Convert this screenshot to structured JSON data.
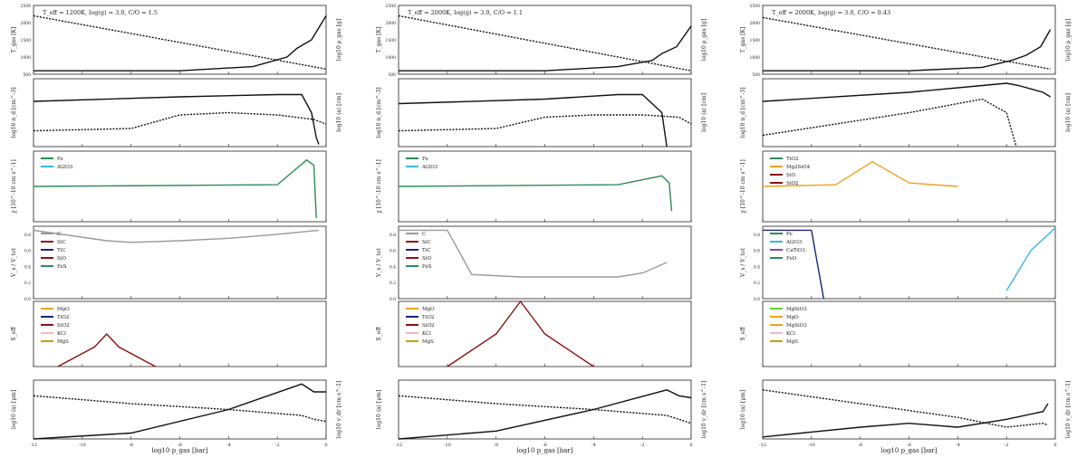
{
  "figure": {
    "type": "multi-panel",
    "columns": [
      {
        "title": "T_eff = 1200K, log(g) = 3.0, C/O = 1.5",
        "xlabel": "log10 p_gas [bar]",
        "x_ticks": [
          "-12",
          "-10",
          "-8",
          "-6",
          "-4",
          "-2",
          "0"
        ]
      },
      {
        "title": "T_eff = 2000K, log(g) = 3.0, C/O = 1.1",
        "xlabel": "log10 p_gas [bar]",
        "x_ticks": [
          "-12",
          "-10",
          "-8",
          "-6",
          "-4",
          "-2",
          "0"
        ]
      },
      {
        "title": "T_eff = 2000K, log(g) = 3.0, C/O = 0.43",
        "xlabel": "log10 p_gas [bar]",
        "x_ticks": [
          "-12",
          "-10",
          "-8",
          "-6",
          "-4",
          "-2",
          "0"
        ]
      }
    ],
    "row_labels": {
      "r1_left": "T_gas [K]",
      "r1_right": "log10 ρ_gas [g]",
      "r2_left": "log10 n_d [cm^-3]",
      "r2_right": "log10 ⟨a⟩ [cm]",
      "r3_left": "χ [10^-10 cm s^-1]",
      "r4_left": "V_s / V_tot",
      "r5_left": "S_eff",
      "r6_left": "log10 ⟨a⟩ [μm]",
      "r6_right": "log10 v_dr [cm s^-1]"
    },
    "r1_ticks": [
      "500",
      "1000",
      "1500",
      "2000",
      "2500"
    ],
    "r4_ticks": [
      "0.0",
      "0.2",
      "0.4",
      "0.6",
      "0.8"
    ]
  },
  "chart_data": [
    {
      "panel": "r1",
      "type": "line",
      "ylim": [
        500,
        2500
      ],
      "series": [
        {
          "name": "c1 T_gas",
          "x": [
            -12,
            -6,
            -3,
            -1.6,
            -1.2,
            -0.6,
            0
          ],
          "y": [
            600,
            600,
            720,
            1000,
            1250,
            1500,
            2200
          ]
        },
        {
          "name": "c1 rho_gas",
          "x": [
            -12,
            0
          ],
          "y": [
            2200,
            650
          ]
        },
        {
          "name": "c2 T_gas",
          "x": [
            -12,
            -6,
            -3,
            -1.6,
            -1.2,
            -0.6,
            0
          ],
          "y": [
            600,
            600,
            720,
            900,
            1100,
            1300,
            1900
          ]
        },
        {
          "name": "c2 rho_gas",
          "x": [
            -12,
            0
          ],
          "y": [
            2200,
            600
          ]
        },
        {
          "name": "c3 T_gas",
          "x": [
            -12,
            -6,
            -3,
            -1.8,
            -1.2,
            -0.6,
            -0.2
          ],
          "y": [
            600,
            600,
            700,
            900,
            1050,
            1300,
            1800
          ]
        },
        {
          "name": "c3 rho_gas",
          "x": [
            -12,
            -0.2
          ],
          "y": [
            2150,
            650
          ]
        }
      ]
    },
    {
      "panel": "r2",
      "type": "line",
      "ylim": [
        0,
        3
      ],
      "series": [
        {
          "name": "c1 n_d",
          "x": [
            -12,
            -6,
            -2,
            -1,
            -0.6,
            -0.4,
            -0.3
          ],
          "y": [
            2.0,
            2.2,
            2.3,
            2.3,
            1.5,
            0.4,
            0.1
          ]
        },
        {
          "name": "c1 <a>",
          "x": [
            -12,
            -8,
            -6,
            -4,
            -2,
            -0.5,
            0
          ],
          "y": [
            0.7,
            0.8,
            1.4,
            1.5,
            1.4,
            1.2,
            1.0
          ]
        },
        {
          "name": "c2 n_d",
          "x": [
            -12,
            -6,
            -3,
            -2,
            -1.2,
            -1.0
          ],
          "y": [
            1.9,
            2.1,
            2.3,
            2.3,
            1.5,
            0.0
          ]
        },
        {
          "name": "c2 <a>",
          "x": [
            -12,
            -8,
            -6,
            -4,
            -2,
            -0.5,
            0
          ],
          "y": [
            0.7,
            0.8,
            1.3,
            1.4,
            1.4,
            1.3,
            1.0
          ]
        },
        {
          "name": "c3 n_d",
          "x": [
            -12,
            -6,
            -3,
            -2,
            -1.5,
            -0.5,
            -0.2
          ],
          "y": [
            2.0,
            2.4,
            2.7,
            2.8,
            2.7,
            2.4,
            2.2
          ]
        },
        {
          "name": "c3 <a>",
          "x": [
            -12,
            -6,
            -3,
            -2,
            -1.6
          ],
          "y": [
            0.5,
            1.5,
            2.1,
            1.5,
            0.0
          ]
        }
      ]
    },
    {
      "panel": "r3",
      "type": "line",
      "ylim": [
        -2,
        2
      ],
      "legend": [
        {
          "label": "Fe",
          "color": "#2e8b57"
        },
        {
          "label": "Al2O3",
          "color": "#3cb4e6"
        },
        {
          "label": "TiO2",
          "color": "#2e8b57"
        },
        {
          "label": "Mg2SiO4",
          "color": "#f0a020"
        },
        {
          "label": "SiO",
          "color": "#8b1010"
        },
        {
          "label": "SiO2",
          "color": "#8b1010"
        }
      ],
      "series": [
        {
          "name": "c1 Fe",
          "x": [
            -12,
            -2,
            -0.8,
            -0.5,
            -0.4
          ],
          "y": [
            0,
            0.1,
            1.5,
            1.2,
            -1.8
          ]
        },
        {
          "name": "c2 Fe",
          "x": [
            -12,
            -3,
            -1.2,
            -0.9,
            -0.8
          ],
          "y": [
            0,
            0.1,
            0.6,
            0.2,
            -1.4
          ]
        },
        {
          "name": "c3 Mg2SiO4",
          "x": [
            -12,
            -9,
            -7.5,
            -6,
            -4
          ],
          "y": [
            0,
            0.1,
            1.4,
            0.2,
            0
          ]
        }
      ]
    },
    {
      "panel": "r4",
      "type": "line",
      "ylim": [
        0,
        0.9
      ],
      "legend": [
        {
          "label": "C",
          "color": "#999999"
        },
        {
          "label": "SiC",
          "color": "#8b1010"
        },
        {
          "label": "TiC",
          "color": "#1a237e"
        },
        {
          "label": "SiO",
          "color": "#8b1010"
        },
        {
          "label": "FeS",
          "color": "#2e8b57"
        },
        {
          "label": "Fe",
          "color": "#2e8b57"
        },
        {
          "label": "Al2O3",
          "color": "#3cb4e6"
        },
        {
          "label": "CaTiO3",
          "color": "#8e44ad"
        },
        {
          "label": "FeO",
          "color": "#2e8b57"
        }
      ],
      "series": [
        {
          "name": "c1 C",
          "x": [
            -12,
            -9,
            -8,
            -6,
            -4,
            -2,
            -0.3
          ],
          "y": [
            0.85,
            0.72,
            0.7,
            0.72,
            0.75,
            0.8,
            0.85
          ]
        },
        {
          "name": "c2 C",
          "x": [
            -12,
            -10,
            -9,
            -7,
            -3,
            -2,
            -1
          ],
          "y": [
            0.85,
            0.85,
            0.3,
            0.27,
            0.27,
            0.32,
            0.45
          ]
        },
        {
          "name": "c3 TiO2",
          "x": [
            -12,
            -10,
            -9.5
          ],
          "y": [
            0.85,
            0.85,
            0.0
          ]
        },
        {
          "name": "c3 Al2O3",
          "x": [
            -2,
            -1,
            0
          ],
          "y": [
            0.1,
            0.6,
            0.88
          ]
        }
      ]
    },
    {
      "panel": "r5",
      "type": "line",
      "ylim": [
        0,
        1
      ],
      "legend": [
        {
          "label": "MgO",
          "color": "#f0a020"
        },
        {
          "label": "TiO2",
          "color": "#1a237e"
        },
        {
          "label": "SiO2",
          "color": "#8b1010"
        },
        {
          "label": "KCl",
          "color": "#f4b6c2"
        },
        {
          "label": "MgS",
          "color": "#c8a000"
        },
        {
          "label": "MgSiO3",
          "color": "#66cc33"
        },
        {
          "label": "MgO",
          "color": "#f0a020"
        },
        {
          "label": "MgSiO3",
          "color": "#f0a020"
        },
        {
          "label": "KCl",
          "color": "#f4b6c2"
        },
        {
          "label": "MgS",
          "color": "#c8a000"
        }
      ],
      "series": [
        {
          "name": "c1 SiO2",
          "x": [
            -11,
            -9.5,
            -9,
            -8.5,
            -7
          ],
          "y": [
            0.0,
            0.3,
            0.5,
            0.3,
            0.0
          ]
        },
        {
          "name": "c2 SiO2",
          "x": [
            -10,
            -8,
            -7,
            -6,
            -4
          ],
          "y": [
            0.0,
            0.5,
            1.0,
            0.5,
            0.0
          ]
        }
      ]
    },
    {
      "panel": "r6",
      "type": "line",
      "ylim": [
        0,
        3
      ],
      "series": [
        {
          "name": "c1 <a>",
          "x": [
            -12,
            -8,
            -4,
            -1,
            -0.5,
            0
          ],
          "y": [
            0.0,
            0.3,
            1.5,
            2.8,
            2.4,
            2.4
          ]
        },
        {
          "name": "c1 v_dr",
          "x": [
            -12,
            -8,
            -4,
            -1,
            -0.5,
            0
          ],
          "y": [
            2.2,
            1.8,
            1.5,
            1.2,
            1.0,
            0.9
          ]
        },
        {
          "name": "c2 <a>",
          "x": [
            -12,
            -8,
            -4,
            -1,
            -0.5,
            0
          ],
          "y": [
            0.0,
            0.4,
            1.5,
            2.5,
            2.2,
            2.1
          ]
        },
        {
          "name": "c2 v_dr",
          "x": [
            -12,
            -8,
            -4,
            -1,
            -0.5,
            0
          ],
          "y": [
            2.2,
            1.8,
            1.5,
            1.2,
            1.0,
            0.8
          ]
        },
        {
          "name": "c3 <a>",
          "x": [
            -12,
            -8,
            -6,
            -4,
            -2,
            -0.5,
            -0.3
          ],
          "y": [
            0.1,
            0.6,
            0.8,
            0.6,
            1.0,
            1.4,
            1.8
          ]
        },
        {
          "name": "c3 v_dr",
          "x": [
            -12,
            -8,
            -4,
            -2,
            -0.5,
            -0.3
          ],
          "y": [
            2.5,
            1.8,
            1.1,
            0.6,
            0.8,
            0.7
          ]
        }
      ]
    }
  ]
}
